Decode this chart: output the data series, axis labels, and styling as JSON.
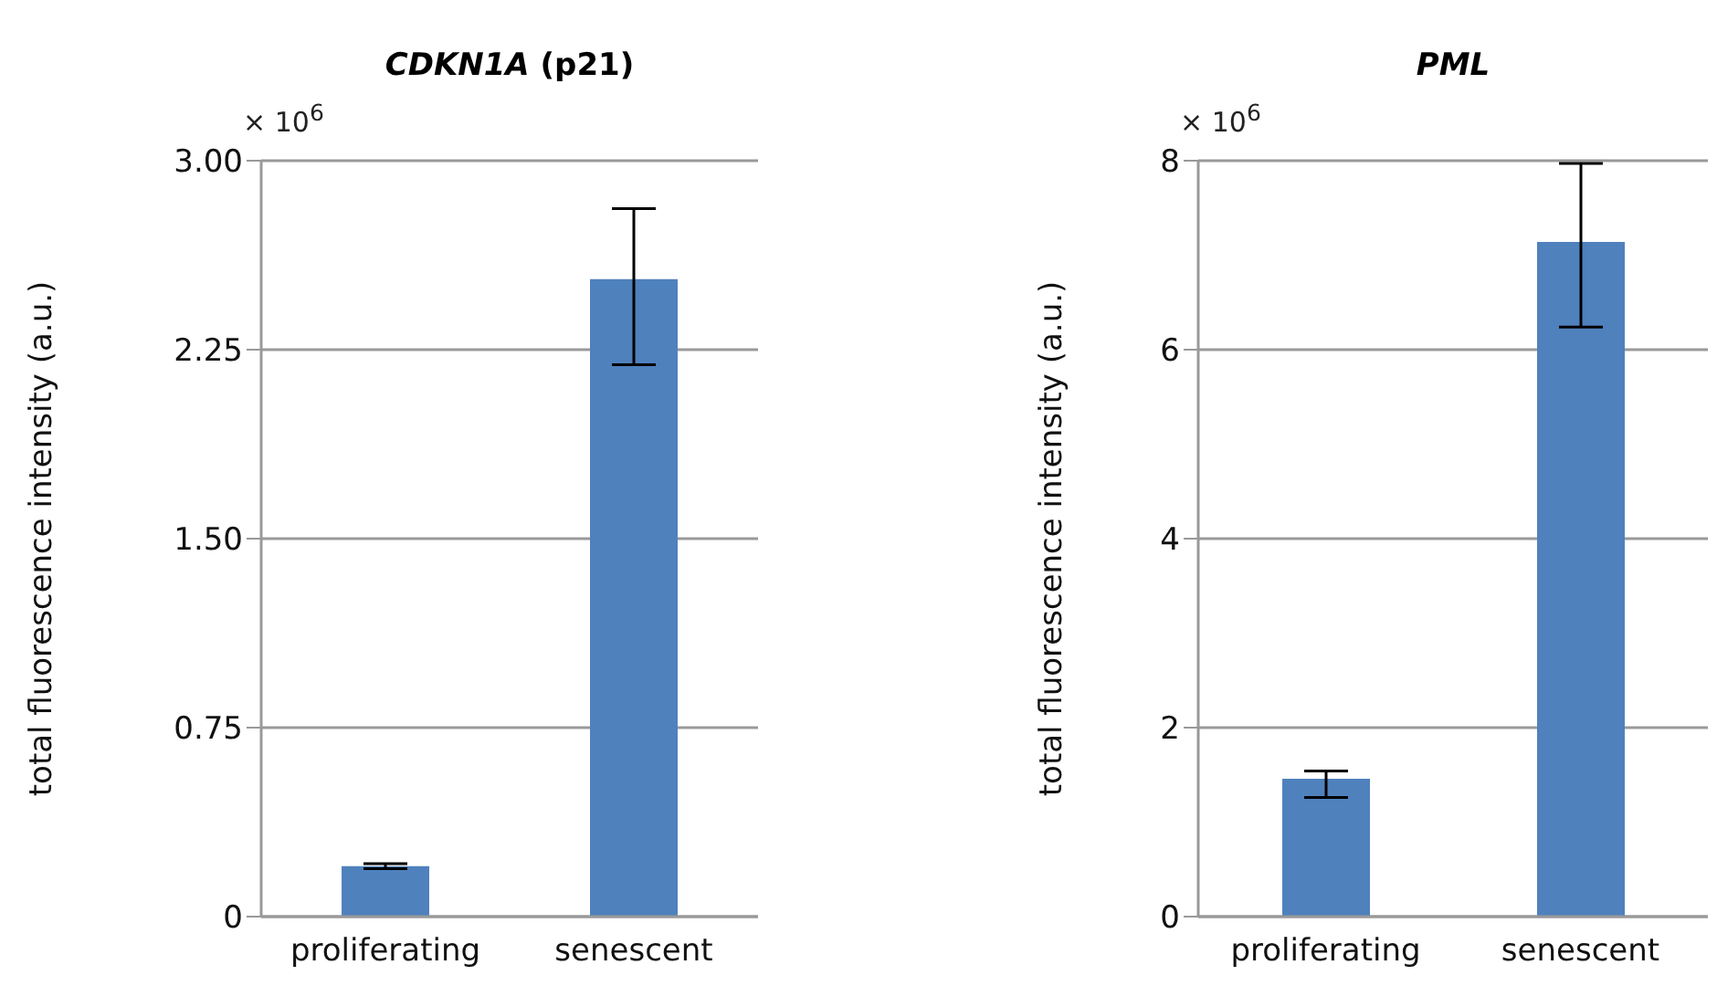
{
  "chart_data": [
    {
      "type": "bar",
      "title": "CDKN1A (p21)",
      "ylabel": "total fluorescence intensity (a.u.)",
      "annotations": [
        "× 10$^{6}$"
      ],
      "categories": [
        "proliferating",
        "senescent"
      ],
      "values": [
        0.2,
        2.53
      ],
      "errors": [
        [
          0.19,
          0.21
        ],
        [
          2.19,
          2.81
        ]
      ],
      "color": "#4f81bd",
      "ylim": [
        0,
        3
      ],
      "yticks": [
        0,
        {
          "value": 0.75,
          "label": "0.75"
        },
        {
          "value": 1.5,
          "label": "1.50"
        },
        {
          "value": 2.25,
          "label": "2.25"
        },
        {
          "value": 3,
          "label": "3.00"
        }
      ],
      "grid": "y"
    },
    {
      "type": "bar",
      "title": "PML",
      "ylabel": "total fluorescence intensity (a.u.)",
      "annotations": [
        "× 10$^{6}$"
      ],
      "categories": [
        "proliferating",
        "senescent"
      ],
      "values": [
        1.46,
        7.14
      ],
      "errors": [
        [
          1.26,
          1.54
        ],
        [
          6.24,
          7.97
        ]
      ],
      "color": "#4f81bd",
      "ylim": [
        0,
        8
      ],
      "yticks": [
        0,
        2,
        4,
        6,
        8
      ],
      "grid": "y"
    }
  ]
}
